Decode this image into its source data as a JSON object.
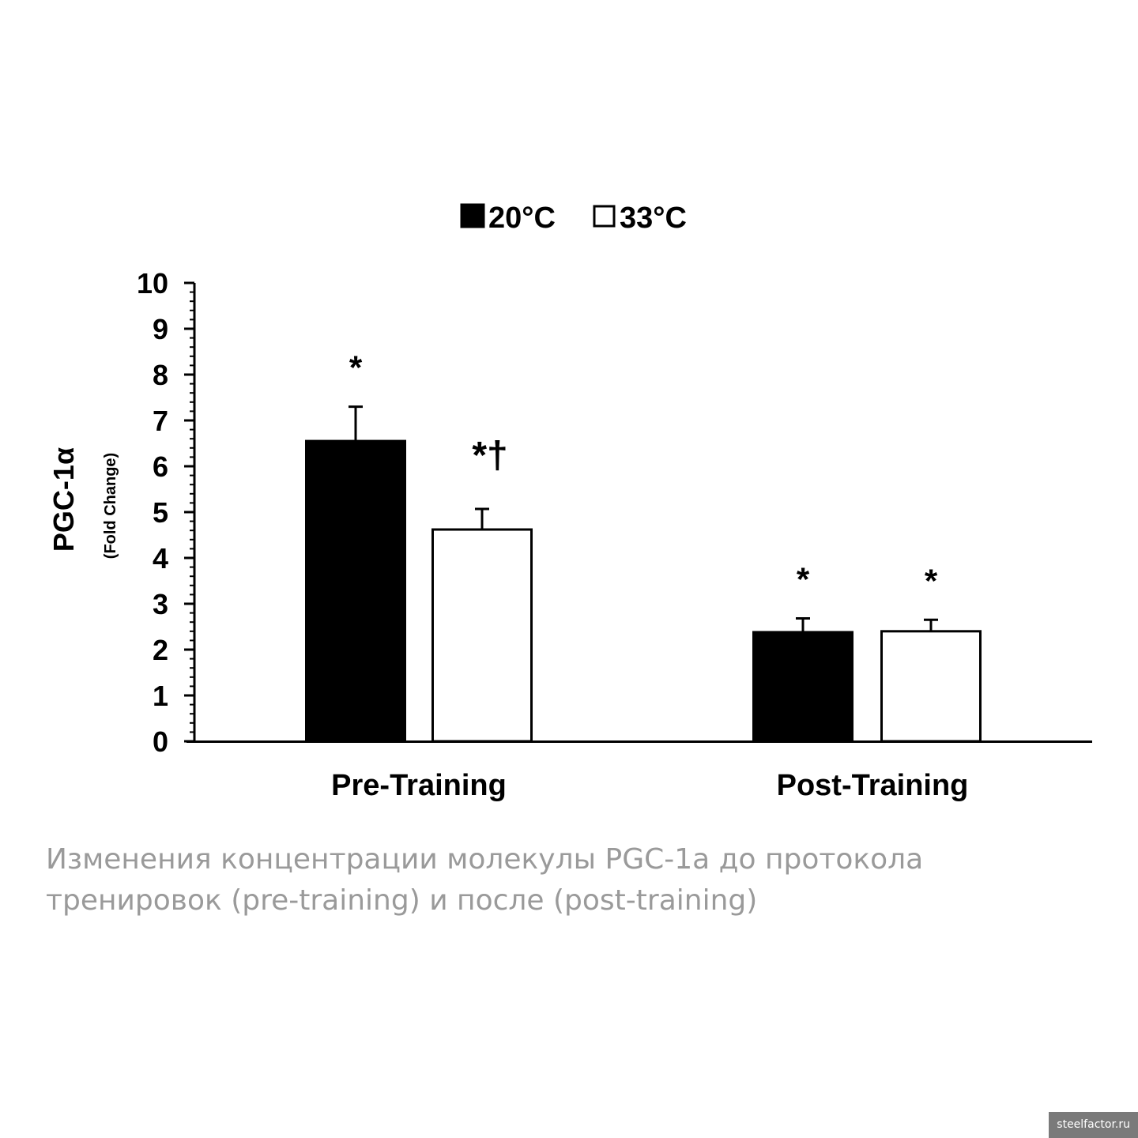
{
  "chart_data": {
    "type": "bar",
    "categories": [
      "Pre-Training",
      "Post-Training"
    ],
    "series": [
      {
        "name": "20°C",
        "values": [
          6.55,
          2.38
        ],
        "errors": [
          0.75,
          0.3
        ],
        "significance": [
          "*",
          "*"
        ],
        "color": "#000000"
      },
      {
        "name": "33°C",
        "values": [
          4.62,
          2.4
        ],
        "errors": [
          0.45,
          0.25
        ],
        "significance": [
          "*†",
          "*"
        ],
        "color": "#ffffff"
      }
    ],
    "ylabel": "PGC-1α",
    "ylabel_sub": "(Fold Change)",
    "ylim": [
      0,
      10
    ],
    "yticks": [
      "0",
      "1",
      "2",
      "3",
      "4",
      "5",
      "6",
      "7",
      "8",
      "9",
      "10"
    ],
    "legend_position": "top-center",
    "grid": false
  },
  "caption": "Изменения концентрации молекулы PGC-1a до протокола тренировок (pre-training) и после (post-training)",
  "watermark": "steelfactor.ru"
}
